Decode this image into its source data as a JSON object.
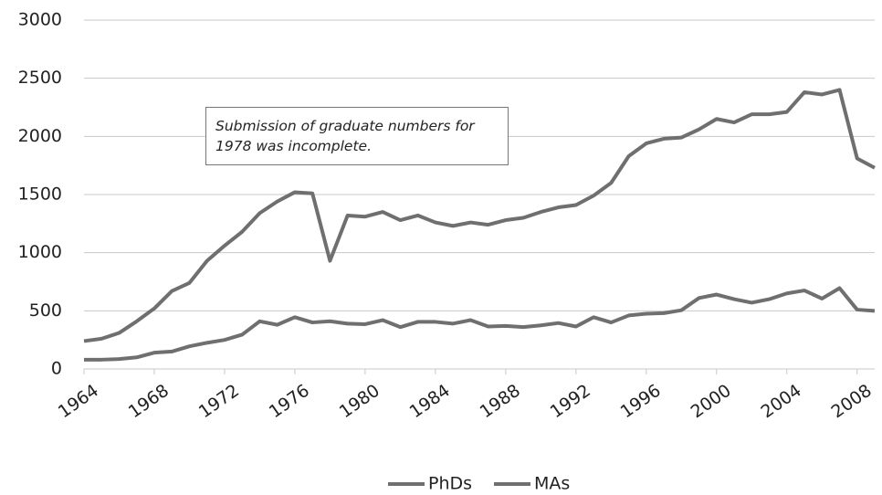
{
  "chart_data": {
    "type": "line",
    "annotation": "Submission of graduate numbers for 1978 was incomplete.",
    "x": [
      1964,
      1965,
      1966,
      1967,
      1968,
      1969,
      1970,
      1971,
      1972,
      1973,
      1974,
      1975,
      1976,
      1977,
      1978,
      1979,
      1980,
      1981,
      1982,
      1983,
      1984,
      1985,
      1986,
      1987,
      1988,
      1989,
      1990,
      1991,
      1992,
      1993,
      1994,
      1995,
      1996,
      1997,
      1998,
      1999,
      2000,
      2001,
      2002,
      2003,
      2004,
      2005,
      2006,
      2007,
      2008,
      2009
    ],
    "series": [
      {
        "name": "PhDs",
        "color": "#6f6f6f",
        "values": [
          240,
          260,
          310,
          410,
          520,
          670,
          740,
          930,
          1060,
          1180,
          1340,
          1440,
          1520,
          1510,
          930,
          1320,
          1310,
          1350,
          1280,
          1320,
          1260,
          1230,
          1260,
          1240,
          1280,
          1300,
          1350,
          1390,
          1410,
          1490,
          1600,
          1830,
          1940,
          1980,
          1990,
          2060,
          2150,
          2120,
          2190,
          2190,
          2210,
          2380,
          2360,
          2400,
          1810,
          1730
        ]
      },
      {
        "name": "MAs",
        "color": "#6f6f6f",
        "values": [
          80,
          80,
          85,
          100,
          140,
          150,
          195,
          225,
          250,
          295,
          410,
          380,
          445,
          400,
          410,
          390,
          385,
          420,
          360,
          405,
          405,
          390,
          420,
          365,
          370,
          360,
          375,
          395,
          365,
          445,
          400,
          460,
          475,
          480,
          505,
          610,
          640,
          600,
          570,
          600,
          650,
          675,
          605,
          695,
          510,
          500
        ]
      }
    ],
    "xlim": [
      1964,
      2009
    ],
    "xticks": [
      1964,
      1968,
      1972,
      1976,
      1980,
      1984,
      1988,
      1992,
      1996,
      2000,
      2004,
      2008
    ],
    "ylim": [
      0,
      3000
    ],
    "yticks": [
      0,
      500,
      1000,
      1500,
      2000,
      2500,
      3000
    ],
    "grid": true,
    "legend": "bottom"
  }
}
